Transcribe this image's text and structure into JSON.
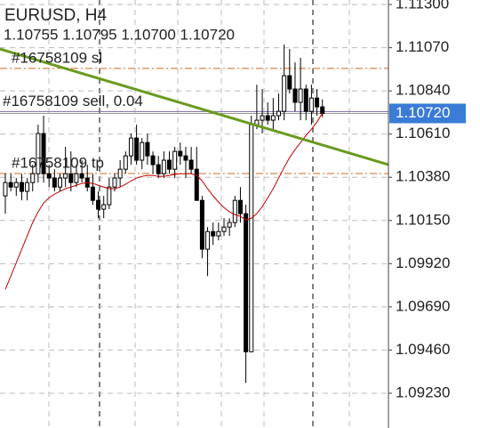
{
  "chart_data": {
    "type": "candlestick",
    "title": "EURUSD, H4",
    "subtitle": "1.10755 1.10795 1.10700 1.10720",
    "ylim": [
      1.09045,
      1.11324
    ],
    "yticks": [
      {
        "value": 1.113,
        "label": "1.11300"
      },
      {
        "value": 1.1107,
        "label": "1.11070"
      },
      {
        "value": 1.1084,
        "label": "1.10840"
      },
      {
        "value": 1.1061,
        "label": "1.10610"
      },
      {
        "value": 1.1038,
        "label": "1.10380"
      },
      {
        "value": 1.1015,
        "label": "1.10150"
      },
      {
        "value": 1.0992,
        "label": "1.09920"
      },
      {
        "value": 1.0969,
        "label": "1.09690"
      },
      {
        "value": 1.0946,
        "label": "1.09460"
      },
      {
        "value": 1.0923,
        "label": "1.09230"
      }
    ],
    "grid": true,
    "up_color": "#ffffff",
    "down_color": "#000000",
    "open": [
      1.10281,
      1.10352,
      1.10328,
      1.10352,
      1.10305,
      1.10352,
      1.10399,
      1.10613,
      1.10399,
      1.10376,
      1.10328,
      1.10376,
      1.10399,
      1.10352,
      1.10399,
      1.10376,
      1.10328,
      1.10257,
      1.1021,
      1.10234,
      1.10328,
      1.10376,
      1.10423,
      1.10494,
      1.10589,
      1.10471,
      1.10565,
      1.10494,
      1.10447,
      1.10399,
      1.10471,
      1.10423,
      1.10518,
      1.10494,
      1.10471,
      1.10423,
      1.10257,
      1.09997,
      1.10091,
      1.10068,
      1.10091,
      1.10115,
      1.10139,
      1.10257,
      1.10186,
      1.09451,
      1.1066,
      1.10684,
      1.10708,
      1.10684,
      1.10708,
      1.10731,
      1.10921,
      1.1085,
      1.10779,
      1.1085,
      1.10731,
      1.10802,
      1.10755
    ],
    "high": [
      1.10399,
      1.10399,
      1.10376,
      1.10399,
      1.10376,
      1.10447,
      1.1066,
      1.10708,
      1.10447,
      1.10423,
      1.10399,
      1.10542,
      1.10518,
      1.10447,
      1.10471,
      1.10447,
      1.10399,
      1.10305,
      1.10281,
      1.10376,
      1.10399,
      1.10471,
      1.10518,
      1.10613,
      1.1066,
      1.10589,
      1.10613,
      1.10518,
      1.10494,
      1.10518,
      1.10518,
      1.10542,
      1.10565,
      1.10542,
      1.10542,
      1.10542,
      1.10281,
      1.10115,
      1.10139,
      1.10139,
      1.10162,
      1.10162,
      1.10281,
      1.10328,
      1.10234,
      1.10708,
      1.10873,
      1.1085,
      1.10779,
      1.10802,
      1.10826,
      1.11087,
      1.11063,
      1.10992,
      1.11016,
      1.10873,
      1.10873,
      1.1085,
      1.10795
    ],
    "low": [
      1.10186,
      1.10305,
      1.10281,
      1.10257,
      1.10257,
      1.10305,
      1.10352,
      1.10352,
      1.10328,
      1.10305,
      1.10305,
      1.10328,
      1.10305,
      1.10328,
      1.10352,
      1.10305,
      1.10234,
      1.10162,
      1.10162,
      1.1021,
      1.10305,
      1.10328,
      1.10399,
      1.10447,
      1.10447,
      1.10423,
      1.10447,
      1.10399,
      1.10376,
      1.10376,
      1.10399,
      1.10376,
      1.10447,
      1.10376,
      1.10399,
      1.10257,
      1.09949,
      1.09854,
      1.1002,
      1.10044,
      1.10068,
      1.10068,
      1.10115,
      1.10139,
      1.09285,
      1.09451,
      1.10636,
      1.10613,
      1.1066,
      1.10636,
      1.10684,
      1.10684,
      1.10826,
      1.10731,
      1.10684,
      1.10684,
      1.1066,
      1.10708,
      1.107
    ],
    "close": [
      1.10352,
      1.10328,
      1.10352,
      1.10305,
      1.10352,
      1.10399,
      1.10613,
      1.10399,
      1.10376,
      1.10328,
      1.10376,
      1.10399,
      1.10352,
      1.10399,
      1.10376,
      1.10328,
      1.10257,
      1.1021,
      1.10234,
      1.10328,
      1.10376,
      1.10423,
      1.10494,
      1.10589,
      1.10471,
      1.10565,
      1.10494,
      1.10447,
      1.10399,
      1.10471,
      1.10423,
      1.10518,
      1.10494,
      1.10471,
      1.10423,
      1.10257,
      1.09997,
      1.10091,
      1.10068,
      1.10091,
      1.10115,
      1.10139,
      1.10257,
      1.10186,
      1.09451,
      1.1066,
      1.10684,
      1.10708,
      1.10684,
      1.10708,
      1.10731,
      1.10921,
      1.1085,
      1.10779,
      1.1085,
      1.10731,
      1.10802,
      1.10755,
      1.1072
    ],
    "moving_average": {
      "color": "#c00000",
      "values": [
        1.09783,
        1.09854,
        1.09925,
        1.09997,
        1.10068,
        1.10139,
        1.10196,
        1.10243,
        1.10271,
        1.1029,
        1.10305,
        1.10319,
        1.10328,
        1.10338,
        1.10347,
        1.10352,
        1.10347,
        1.10338,
        1.10328,
        1.10319,
        1.10319,
        1.10328,
        1.10343,
        1.10361,
        1.10376,
        1.10385,
        1.1039,
        1.1039,
        1.10385,
        1.10385,
        1.1039,
        1.10395,
        1.10399,
        1.10399,
        1.10399,
        1.1039,
        1.10361,
        1.10319,
        1.10281,
        1.10248,
        1.10219,
        1.10196,
        1.10181,
        1.10172,
        1.10153,
        1.10162,
        1.10186,
        1.10224,
        1.10271,
        1.10319,
        1.10376,
        1.10433,
        1.10485,
        1.10527,
        1.10565,
        1.10603,
        1.10636,
        1.10674,
        1.10722
      ]
    },
    "trendline": {
      "color": "#6a9a1f",
      "start": 1.11063,
      "end": 1.10447
    },
    "orders": [
      {
        "label": "#16758109 sl",
        "price": 1.1096,
        "color": "#d2691e"
      },
      {
        "label": "#16758109 sell, 0.04",
        "price": 1.1073,
        "color": "#7b68a6"
      },
      {
        "label": "#16758109 tp",
        "price": 1.104,
        "color": "#d2691e"
      }
    ],
    "bid": {
      "value": 1.1072,
      "label": "1.10720"
    },
    "bid_color": "#3a7bd5"
  }
}
